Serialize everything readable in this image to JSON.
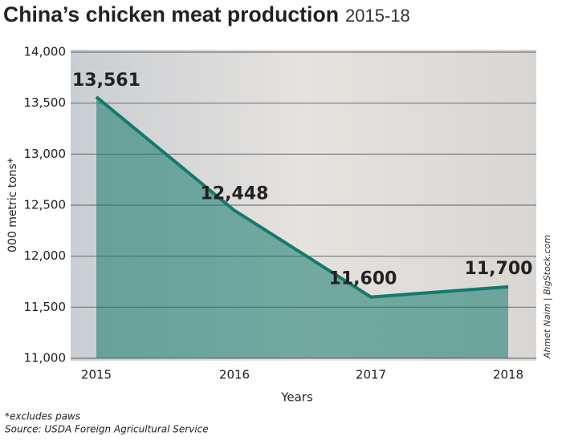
{
  "chart_data": {
    "type": "line",
    "title": "China’s chicken meat production",
    "subtitle": "2015-18",
    "y_label": "000 metric tons*",
    "x_label": "Years",
    "footnote": "*excludes paws",
    "source": "Source: USDA Foreign Agricultural Service",
    "credit": "Ahmet Naim | BigStock.com",
    "categories": [
      "2015",
      "2016",
      "2017",
      "2018"
    ],
    "values": [
      13561,
      12448,
      11600,
      11700
    ],
    "value_labels": [
      "13,561",
      "12,448",
      "11,600",
      "11,700"
    ],
    "color": "#137a6c",
    "ylim": [
      11000,
      14000
    ],
    "yticks": [
      {
        "value": 11000,
        "label": "11,000"
      },
      {
        "value": 11500,
        "label": "11,500"
      },
      {
        "value": 12000,
        "label": "12,000"
      },
      {
        "value": 12500,
        "label": "12,500"
      },
      {
        "value": 13000,
        "label": "13,000"
      },
      {
        "value": 13500,
        "label": "13,500"
      },
      {
        "value": 14000,
        "label": "14,000"
      }
    ],
    "grid": true
  }
}
